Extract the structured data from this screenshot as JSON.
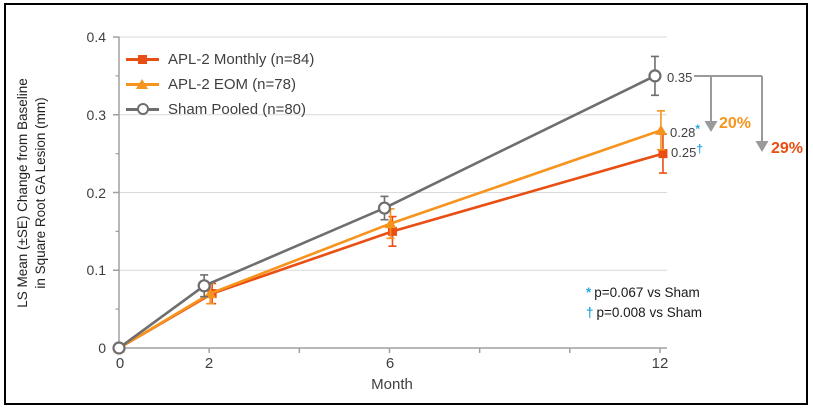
{
  "figure": {
    "x_axis_label": "Month",
    "y_axis_label_line1": "LS Mean (±SE) Change from Baseline",
    "y_axis_label_line2": "in Square Root GA Lesion (mm)",
    "y_tick_labels": [
      "0.4",
      "0.3",
      "0.2",
      "0.1",
      "0"
    ],
    "x_tick_labels": [
      "0",
      "2",
      "6",
      "12"
    ]
  },
  "legend": {
    "items": [
      {
        "label": "APL-2 Monthly (n=84)"
      },
      {
        "label": "APL-2 EOM (n=78)"
      },
      {
        "label": "Sham Pooled (n=80)"
      }
    ]
  },
  "annotations": {
    "end_labels": [
      {
        "value": "0.35",
        "symbol": ""
      },
      {
        "value": "0.28",
        "symbol": "*"
      },
      {
        "value": "0.25",
        "symbol": "†"
      }
    ],
    "reductions": [
      {
        "label": "20%",
        "color": "#f7941d"
      },
      {
        "label": "29%",
        "color": "#e94e12"
      }
    ],
    "footnotes": [
      {
        "symbol": "*",
        "text": "p=0.067 vs Sham"
      },
      {
        "symbol": "†",
        "text": "p=0.008 vs Sham"
      }
    ],
    "symbol_color": "#29a8e1",
    "arrow_color": "#9a9a9a"
  },
  "chart_data": {
    "type": "line",
    "x": [
      0,
      2,
      6,
      12
    ],
    "xlabel": "Month",
    "ylabel": "LS Mean (±SE) Change from Baseline in Square Root GA Lesion (mm)",
    "xlim": [
      0,
      12
    ],
    "ylim": [
      0,
      0.4
    ],
    "x_ticks": [
      0,
      2,
      4,
      6,
      8,
      10,
      12
    ],
    "x_tick_labeled": [
      0,
      2,
      6,
      12
    ],
    "y_ticks": [
      0,
      0.1,
      0.2,
      0.3,
      0.4
    ],
    "y_minor_tick_step": 0.05,
    "grid": "horizontal-major",
    "legend_position": "top-left",
    "series": [
      {
        "name": "APL-2 Monthly (n=84)",
        "marker": "square",
        "color": "#e94e12",
        "values": [
          0,
          0.07,
          0.15,
          0.25
        ],
        "se": [
          0,
          0.013,
          0.019,
          0.025
        ],
        "end_label": "0.25†"
      },
      {
        "name": "APL-2 EOM (n=78)",
        "marker": "triangle",
        "color": "#f7941d",
        "values": [
          0,
          0.07,
          0.16,
          0.28
        ],
        "se": [
          0,
          0.013,
          0.019,
          0.025
        ],
        "end_label": "0.28*"
      },
      {
        "name": "Sham Pooled (n=80)",
        "marker": "open-circle",
        "color": "#6e6e6e",
        "values": [
          0,
          0.08,
          0.18,
          0.35
        ],
        "se": [
          0,
          0.014,
          0.015,
          0.025
        ],
        "end_label": "0.35"
      }
    ],
    "percent_reduction_labels": [
      "20%",
      "29%"
    ],
    "p_value_notes": [
      "* p=0.067 vs Sham",
      "† p=0.008 vs Sham"
    ]
  },
  "colors": {
    "gridline": "#d9d9d9",
    "axis": "#a0a0a0",
    "background": "#ffffff",
    "frame_border": "#000000"
  }
}
